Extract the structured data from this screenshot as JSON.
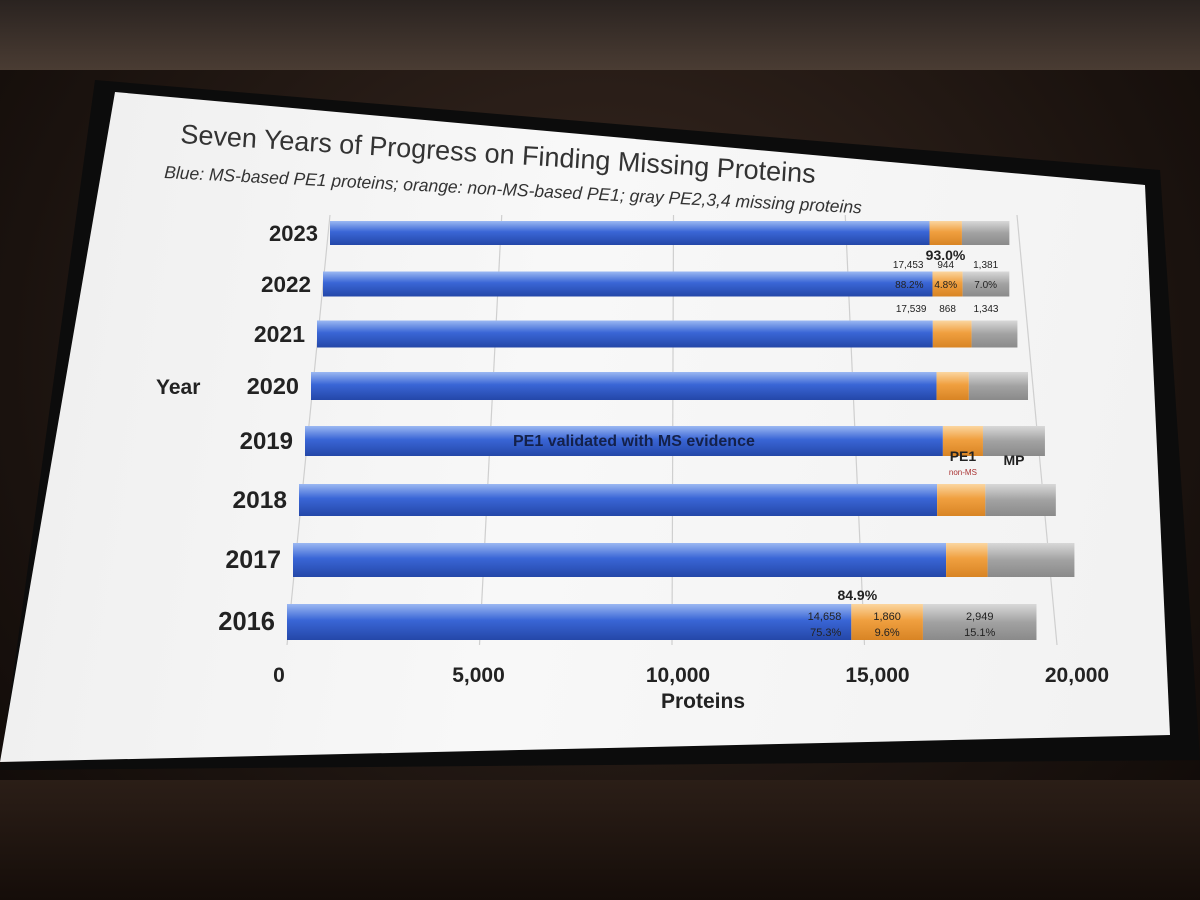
{
  "chart_data": {
    "type": "bar",
    "orientation": "horizontal",
    "stacked": true,
    "title": "Seven Years of Progress on Finding Missing Proteins",
    "subtitle": "Blue: MS-based PE1 proteins; orange: non-MS-based PE1; gray PE2,3,4 missing proteins",
    "xlabel": "Proteins",
    "ylabel": "Year",
    "xlim": [
      0,
      20000
    ],
    "xticks": [
      {
        "value": 0,
        "label": "0"
      },
      {
        "value": 5000,
        "label": "5,000"
      },
      {
        "value": 10000,
        "label": "10,000"
      },
      {
        "value": 15000,
        "label": "15,000"
      },
      {
        "value": 20000,
        "label": "20,000"
      }
    ],
    "grid": true,
    "colors": {
      "ms": "#3a66d6",
      "nonms": "#f0a040",
      "mp": "#a2a2a2"
    },
    "categories": [
      "2023",
      "2022",
      "2021",
      "2020",
      "2019",
      "2018",
      "2017",
      "2016"
    ],
    "series": [
      {
        "key": "ms",
        "values": [
          17453,
          17539,
          17470,
          17450,
          17500,
          17200,
          17300,
          14658
        ]
      },
      {
        "key": "nonms",
        "values": [
          944,
          868,
          1100,
          900,
          1100,
          1300,
          1100,
          1860
        ]
      },
      {
        "key": "mp",
        "values": [
          1381,
          1343,
          1300,
          1650,
          1700,
          1900,
          2300,
          2949
        ]
      }
    ],
    "annotations": {
      "2023": {
        "total_pct": "93.0%",
        "ms_count": "17,453",
        "ms_pct": "88.2%",
        "nonms_count": "944",
        "nonms_pct": "4.8%",
        "mp_count": "1,381",
        "mp_pct": "7.0%"
      },
      "2022": {
        "ms_count": "17,539",
        "nonms_count": "868",
        "mp_count": "1,343"
      },
      "2019": {
        "ms_label": "PE1 validated with MS evidence",
        "nonms_label": "PE1",
        "nonms_sublabel": "non-MS",
        "mp_label": "MP"
      },
      "2016": {
        "total_pct": "84.9%",
        "ms_count": "14,658",
        "ms_pct": "75.3%",
        "nonms_count": "1,860",
        "nonms_pct": "9.6%",
        "mp_count": "2,949",
        "mp_pct": "15.1%"
      }
    }
  }
}
